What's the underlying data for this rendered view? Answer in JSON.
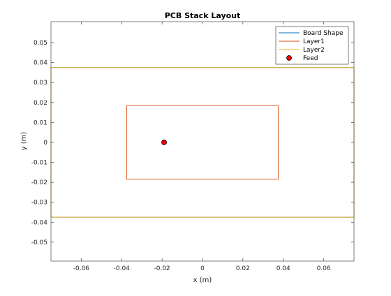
{
  "chart_data": {
    "type": "line",
    "title": "PCB Stack Layout",
    "xlabel": "x (m)",
    "ylabel": "y (m)",
    "xlim": [
      -0.075,
      0.075
    ],
    "ylim": [
      -0.0595,
      0.0605
    ],
    "xticks": [
      -0.06,
      -0.04,
      -0.02,
      0,
      0.02,
      0.04,
      0.06
    ],
    "xtick_labels": [
      "-0.06",
      "-0.04",
      "-0.02",
      "0",
      "0.02",
      "0.04",
      "0.06"
    ],
    "yticks": [
      -0.05,
      -0.04,
      -0.03,
      -0.02,
      -0.01,
      0,
      0.01,
      0.02,
      0.03,
      0.04,
      0.05
    ],
    "ytick_labels": [
      "-0.05",
      "-0.04",
      "-0.03",
      "-0.02",
      "-0.01",
      "0",
      "0.01",
      "0.02",
      "0.03",
      "0.04",
      "0.05"
    ],
    "grid": false,
    "legend_position": "top-right",
    "series": [
      {
        "name": "Board Shape",
        "kind": "polygon",
        "color": "#0072BD",
        "x": [
          -0.075,
          0.075,
          0.075,
          -0.075
        ],
        "y": [
          -0.0375,
          -0.0375,
          0.0375,
          0.0375
        ]
      },
      {
        "name": "Layer1",
        "kind": "polygon",
        "color": "#D95319",
        "x": [
          -0.0375,
          0.0375,
          0.0375,
          -0.0375
        ],
        "y": [
          -0.0185,
          -0.0185,
          0.0185,
          0.0185
        ]
      },
      {
        "name": "Layer2",
        "kind": "polygon",
        "color": "#EDB120",
        "x": [
          -0.075,
          0.075,
          0.075,
          -0.075
        ],
        "y": [
          -0.0375,
          -0.0375,
          0.0375,
          0.0375
        ]
      },
      {
        "name": "Feed",
        "kind": "marker",
        "color": "#FF0000",
        "x": [
          -0.019
        ],
        "y": [
          0
        ]
      }
    ]
  }
}
